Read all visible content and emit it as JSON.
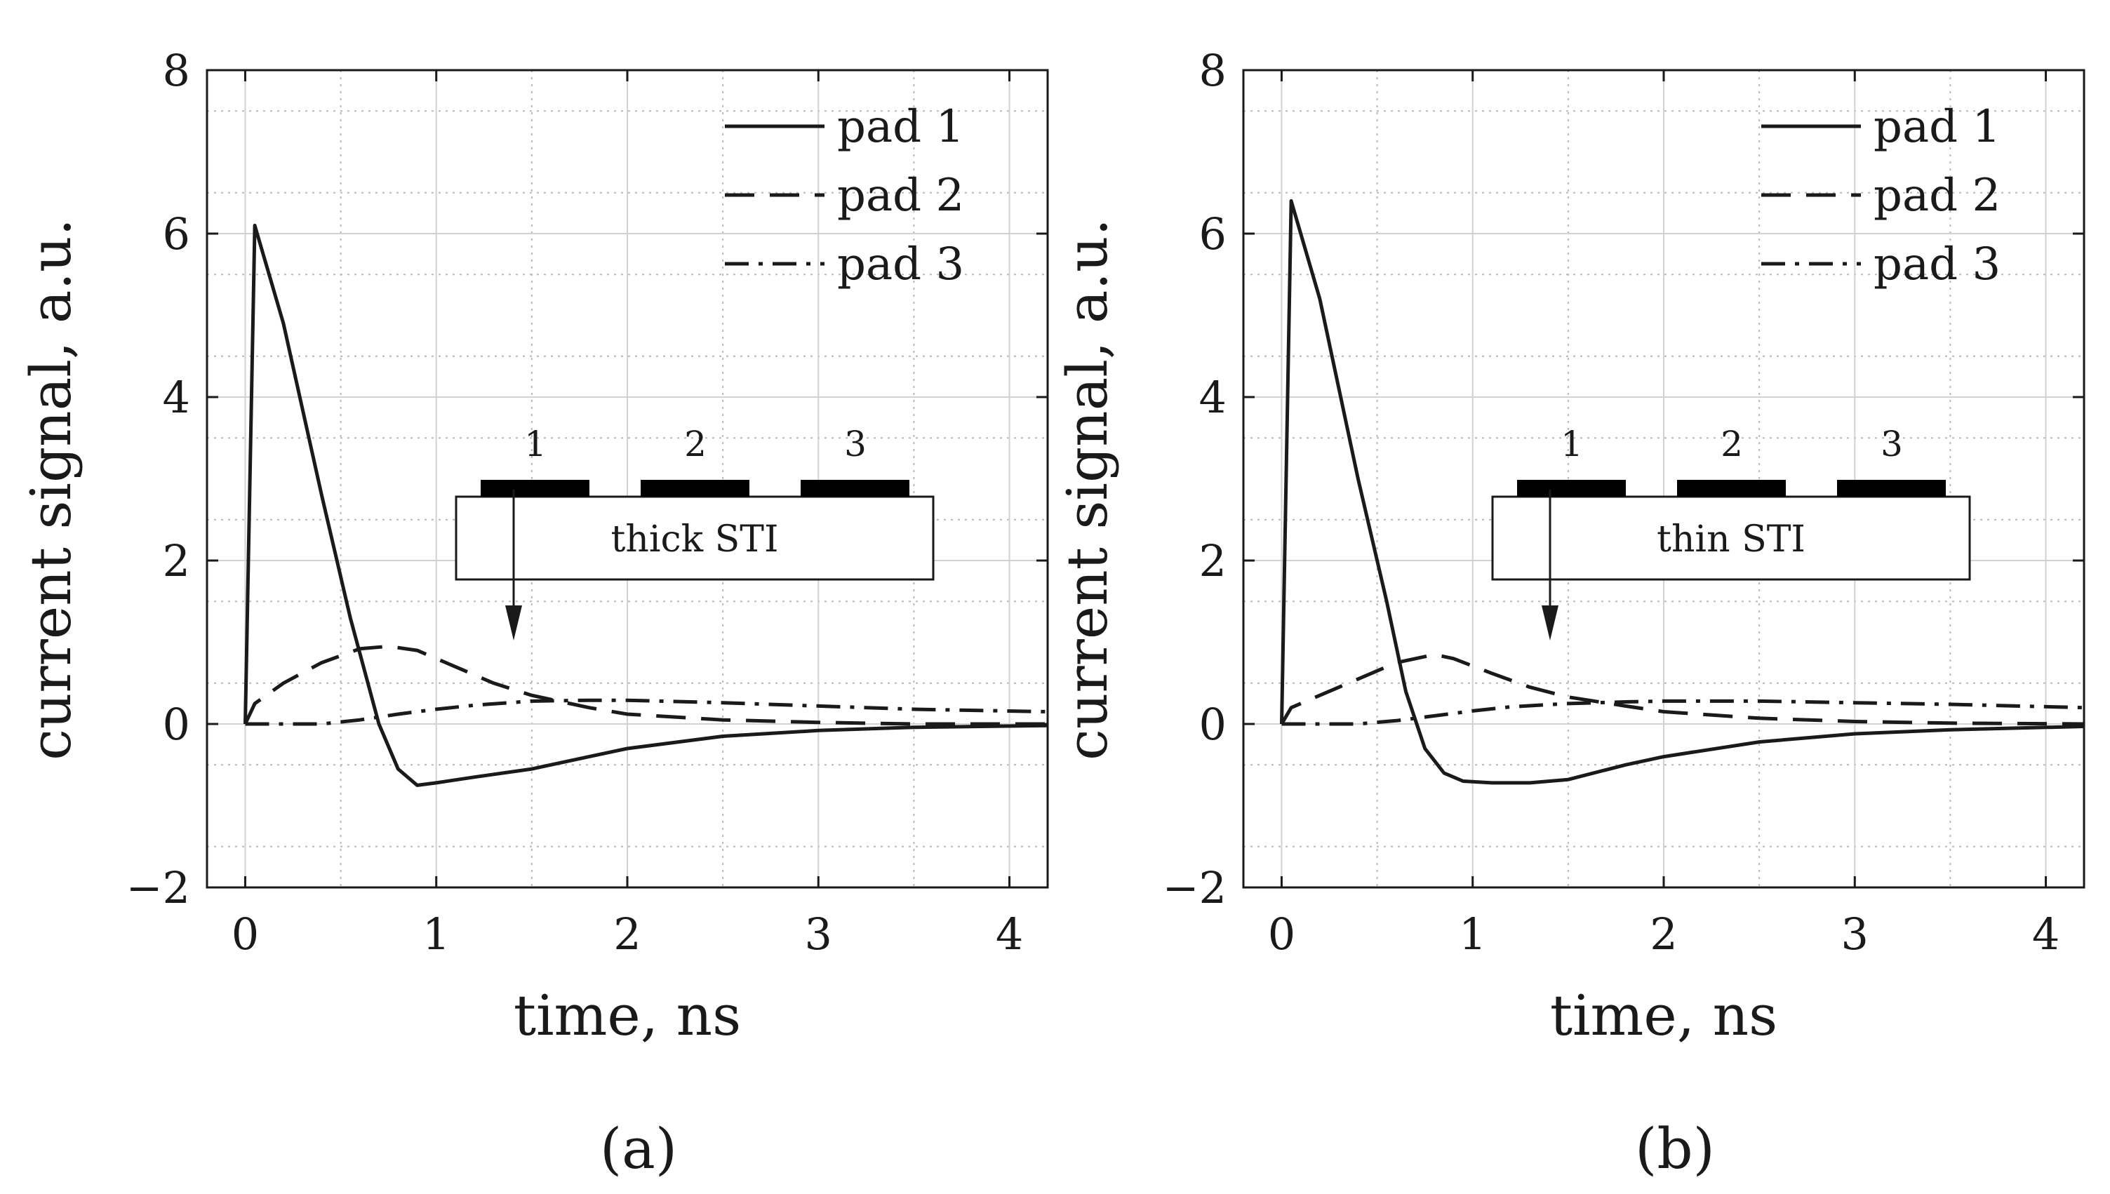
{
  "chart_data": [
    {
      "type": "line",
      "caption": "(a)",
      "xlabel": "time, ns",
      "ylabel": "current signal, a.u.",
      "xlim": [
        -0.2,
        4.2
      ],
      "ylim": [
        -2,
        8
      ],
      "xticks": [
        0,
        1,
        2,
        3,
        4
      ],
      "yticks": [
        -2,
        0,
        2,
        4,
        6,
        8
      ],
      "ytick_labels": [
        "−2",
        "0",
        "2",
        "4",
        "6",
        "8"
      ],
      "grid": true,
      "legend_position": "top-right",
      "series": [
        {
          "name": "pad 1",
          "style": "solid",
          "x": [
            0,
            0.05,
            0.2,
            0.4,
            0.55,
            0.7,
            0.8,
            0.9,
            1.0,
            1.2,
            1.5,
            1.8,
            2.0,
            2.5,
            3.0,
            3.5,
            4.2
          ],
          "y": [
            0,
            6.1,
            4.9,
            2.8,
            1.3,
            0.0,
            -0.55,
            -0.75,
            -0.72,
            -0.65,
            -0.55,
            -0.4,
            -0.3,
            -0.15,
            -0.08,
            -0.04,
            -0.02
          ]
        },
        {
          "name": "pad 2",
          "style": "dashed",
          "x": [
            0,
            0.05,
            0.2,
            0.4,
            0.6,
            0.75,
            0.9,
            1.1,
            1.3,
            1.5,
            1.8,
            2.0,
            2.5,
            3.0,
            3.5,
            4.2
          ],
          "y": [
            0,
            0.25,
            0.5,
            0.75,
            0.92,
            0.95,
            0.9,
            0.7,
            0.5,
            0.35,
            0.2,
            0.12,
            0.05,
            0.02,
            0.0,
            0.0
          ]
        },
        {
          "name": "pad 3",
          "style": "dashdot",
          "x": [
            0,
            0.2,
            0.4,
            0.6,
            0.8,
            1.0,
            1.2,
            1.5,
            1.8,
            2.0,
            2.5,
            3.0,
            3.5,
            4.2
          ],
          "y": [
            0,
            0.0,
            0.0,
            0.05,
            0.12,
            0.18,
            0.23,
            0.28,
            0.29,
            0.29,
            0.26,
            0.22,
            0.18,
            0.15
          ]
        }
      ],
      "inset": {
        "label": "thick STI",
        "pads": [
          "1",
          "2",
          "3"
        ]
      }
    },
    {
      "type": "line",
      "caption": "(b)",
      "xlabel": "time, ns",
      "ylabel": "current signal, a.u.",
      "xlim": [
        -0.2,
        4.2
      ],
      "ylim": [
        -2,
        8
      ],
      "xticks": [
        0,
        1,
        2,
        3,
        4
      ],
      "yticks": [
        -2,
        0,
        2,
        4,
        6,
        8
      ],
      "ytick_labels": [
        "−2",
        "0",
        "2",
        "4",
        "6",
        "8"
      ],
      "grid": true,
      "legend_position": "top-right",
      "series": [
        {
          "name": "pad 1",
          "style": "solid",
          "x": [
            0,
            0.05,
            0.2,
            0.4,
            0.55,
            0.65,
            0.75,
            0.85,
            0.95,
            1.1,
            1.3,
            1.5,
            1.8,
            2.0,
            2.5,
            3.0,
            3.5,
            4.2
          ],
          "y": [
            0,
            6.4,
            5.2,
            3.0,
            1.5,
            0.4,
            -0.3,
            -0.6,
            -0.7,
            -0.72,
            -0.72,
            -0.68,
            -0.5,
            -0.4,
            -0.22,
            -0.12,
            -0.07,
            -0.03
          ]
        },
        {
          "name": "pad 2",
          "style": "dashed",
          "x": [
            0,
            0.05,
            0.2,
            0.4,
            0.6,
            0.8,
            0.9,
            1.1,
            1.3,
            1.5,
            1.8,
            2.0,
            2.5,
            3.0,
            3.5,
            4.2
          ],
          "y": [
            0,
            0.2,
            0.35,
            0.55,
            0.75,
            0.85,
            0.8,
            0.62,
            0.45,
            0.33,
            0.22,
            0.15,
            0.07,
            0.03,
            0.01,
            0.0
          ]
        },
        {
          "name": "pad 3",
          "style": "dashdot",
          "x": [
            0,
            0.2,
            0.4,
            0.6,
            0.8,
            1.0,
            1.2,
            1.5,
            1.8,
            2.0,
            2.5,
            3.0,
            3.5,
            4.2
          ],
          "y": [
            0,
            0.0,
            0.0,
            0.04,
            0.1,
            0.16,
            0.21,
            0.25,
            0.27,
            0.28,
            0.28,
            0.26,
            0.24,
            0.2
          ]
        }
      ],
      "inset": {
        "label": "thin STI",
        "pads": [
          "1",
          "2",
          "3"
        ]
      }
    }
  ]
}
